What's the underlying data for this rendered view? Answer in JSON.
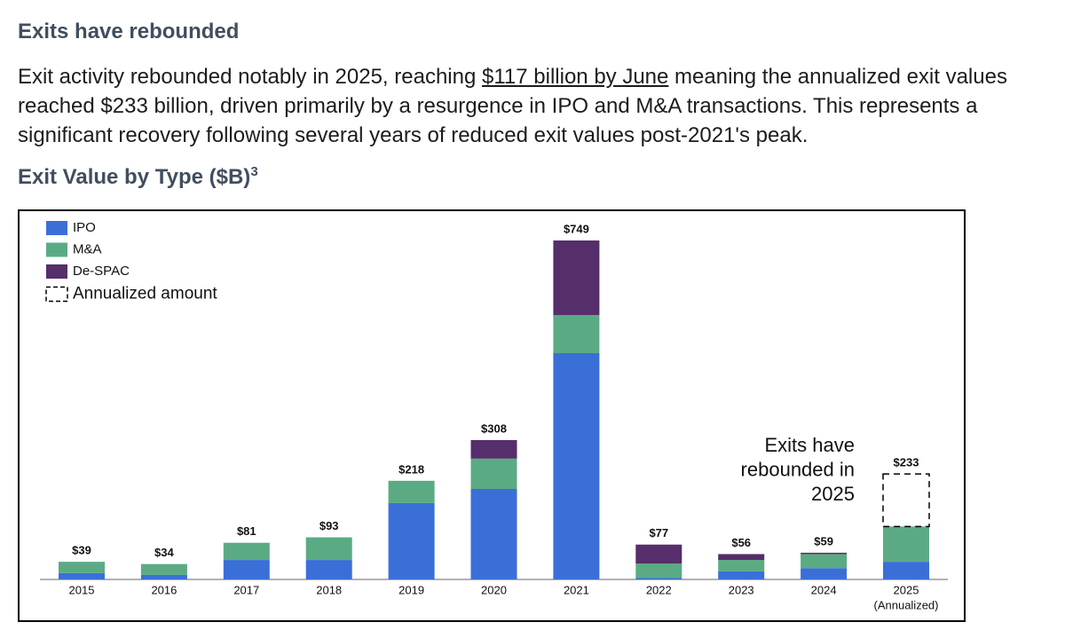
{
  "header": {
    "title": "Exits have rebounded"
  },
  "paragraph": {
    "before": "Exit activity rebounded notably in 2025, reaching ",
    "link": "$117 billion by June",
    "after": " meaning the annualized exit values reached $233 billion, driven primarily by a resurgence in IPO and M&A transactions. This represents a significant recovery following several years of reduced exit values post-2021's peak."
  },
  "chart_data": {
    "type": "stacked_bar",
    "title": "Exit Value by Type ($B)",
    "title_footnote": "3",
    "categories": [
      "2015",
      "2016",
      "2017",
      "2018",
      "2019",
      "2020",
      "2021",
      "2022",
      "2023",
      "2024",
      "2025"
    ],
    "category_sublabels": [
      null,
      null,
      null,
      null,
      null,
      null,
      null,
      null,
      null,
      null,
      "(Annualized)"
    ],
    "series": [
      {
        "name": "IPO",
        "color": "#3a6fd8",
        "values": [
          14,
          10,
          43,
          43,
          169,
          200,
          500,
          3,
          18,
          25,
          39
        ]
      },
      {
        "name": "M&A",
        "color": "#5aab84",
        "values": [
          25,
          24,
          38,
          50,
          49,
          67,
          84,
          32,
          25,
          31,
          78
        ]
      },
      {
        "name": "De-SPAC",
        "color": "#552e6b",
        "values": [
          null,
          null,
          null,
          null,
          null,
          41,
          165,
          42,
          13,
          3,
          null
        ]
      },
      {
        "name": "Annualized amount",
        "color": "#000000",
        "dashed": true,
        "values": [
          null,
          null,
          null,
          null,
          null,
          null,
          null,
          null,
          null,
          null,
          116
        ]
      }
    ],
    "totals": [
      39,
      34,
      81,
      93,
      218,
      308,
      749,
      77,
      56,
      59,
      233
    ],
    "total_labels": [
      "$39",
      "$34",
      "$81",
      "$93",
      "$218",
      "$308",
      "$749",
      "$77",
      "$56",
      "$59",
      "$233"
    ],
    "annotation": [
      "Exits have",
      "rebounded in",
      "2025"
    ],
    "ylim": [
      0,
      800
    ],
    "legend": "top-left"
  }
}
